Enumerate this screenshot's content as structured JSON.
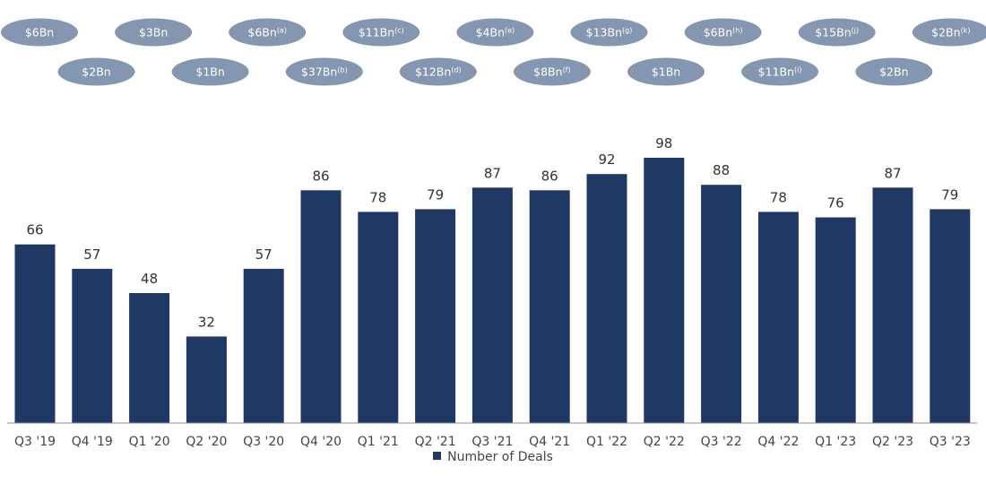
{
  "chart_data": {
    "type": "bar",
    "categories": [
      "Q3 '19",
      "Q4 '19",
      "Q1 '20",
      "Q2 '20",
      "Q3 '20",
      "Q4 '20",
      "Q1 '21",
      "Q2 '21",
      "Q3 '21",
      "Q4 '21",
      "Q1 '22",
      "Q2 '22",
      "Q3 '22",
      "Q4 '22",
      "Q1 '23",
      "Q2 '23",
      "Q3 '23"
    ],
    "series": [
      {
        "name": "Number of Deals",
        "values": [
          66,
          57,
          48,
          32,
          57,
          86,
          78,
          79,
          87,
          86,
          92,
          98,
          88,
          78,
          76,
          87,
          79
        ]
      }
    ],
    "deal_values": [
      {
        "value": "$6Bn",
        "note": ""
      },
      {
        "value": "$2Bn",
        "note": ""
      },
      {
        "value": "$3Bn",
        "note": ""
      },
      {
        "value": "$1Bn",
        "note": ""
      },
      {
        "value": "$6Bn",
        "note": "(a)"
      },
      {
        "value": "$37Bn",
        "note": "(b)"
      },
      {
        "value": "$11Bn",
        "note": "(c)"
      },
      {
        "value": "$12Bn",
        "note": "(d)"
      },
      {
        "value": "$4Bn",
        "note": "(e)"
      },
      {
        "value": "$8Bn",
        "note": "(f)"
      },
      {
        "value": "$13Bn",
        "note": "(g)"
      },
      {
        "value": "$1Bn",
        "note": ""
      },
      {
        "value": "$6Bn",
        "note": "(h)"
      },
      {
        "value": "$11Bn",
        "note": "(i)"
      },
      {
        "value": "$15Bn",
        "note": "(j)"
      },
      {
        "value": "$2Bn",
        "note": ""
      },
      {
        "value": "$2Bn",
        "note": "(k)"
      }
    ],
    "ylim": [
      0,
      110
    ],
    "grid": false,
    "legend_position": "bottom-center",
    "colors": {
      "bar": "#1f3864",
      "bubble": "#8496b0",
      "axis": "#8c8c8c"
    }
  }
}
